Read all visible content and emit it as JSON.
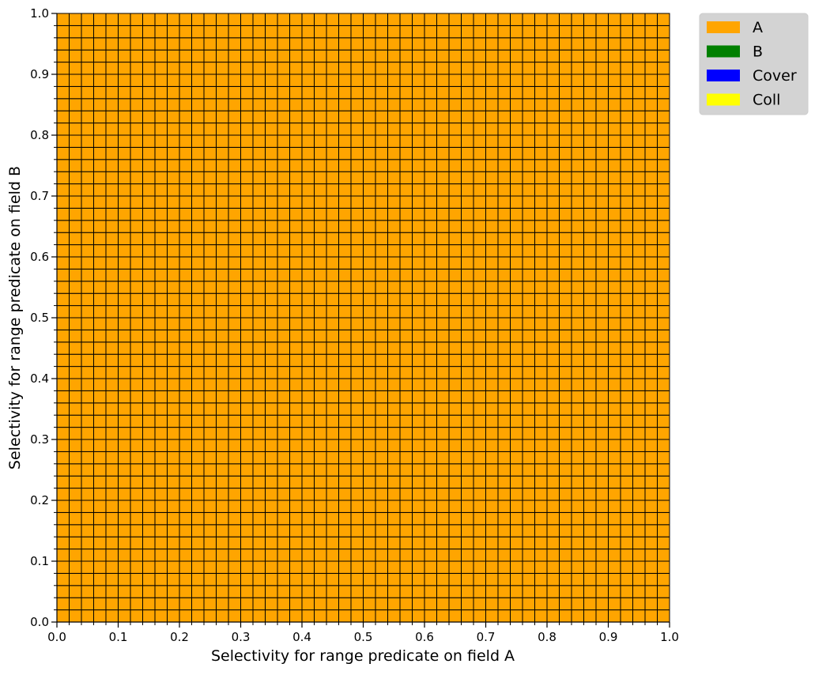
{
  "chart_data": {
    "type": "heatmap",
    "title": "",
    "xlabel": "Selectivity for range predicate on field A",
    "ylabel": "Selectivity for range predicate on field B",
    "xlim": [
      0.0,
      1.0
    ],
    "ylim": [
      0.0,
      1.0
    ],
    "x_major_ticks": [
      "0.0",
      "0.1",
      "0.2",
      "0.3",
      "0.4",
      "0.5",
      "0.6",
      "0.7",
      "0.8",
      "0.9",
      "1.0"
    ],
    "y_major_ticks": [
      "0.0",
      "0.1",
      "0.2",
      "0.3",
      "0.4",
      "0.5",
      "0.6",
      "0.7",
      "0.8",
      "0.9",
      "1.0"
    ],
    "minor_ticks_per_major": 5,
    "grid_resolution": 50,
    "cell_value_description": "winning plan per cell",
    "cell_category_all": "A",
    "categories": [
      "A",
      "B",
      "Cover",
      "Coll"
    ],
    "colors": {
      "A": "#ffa500",
      "B": "#008000",
      "Cover": "#0000ff",
      "Coll": "#ffff00"
    },
    "legend": {
      "placement": "outside-top-right",
      "entries": [
        {
          "label": "A",
          "color": "#ffa500"
        },
        {
          "label": "B",
          "color": "#008000"
        },
        {
          "label": "Cover",
          "color": "#0000ff"
        },
        {
          "label": "Coll",
          "color": "#ffff00"
        }
      ]
    },
    "grid": true,
    "cell_edge_color": "#000000"
  }
}
